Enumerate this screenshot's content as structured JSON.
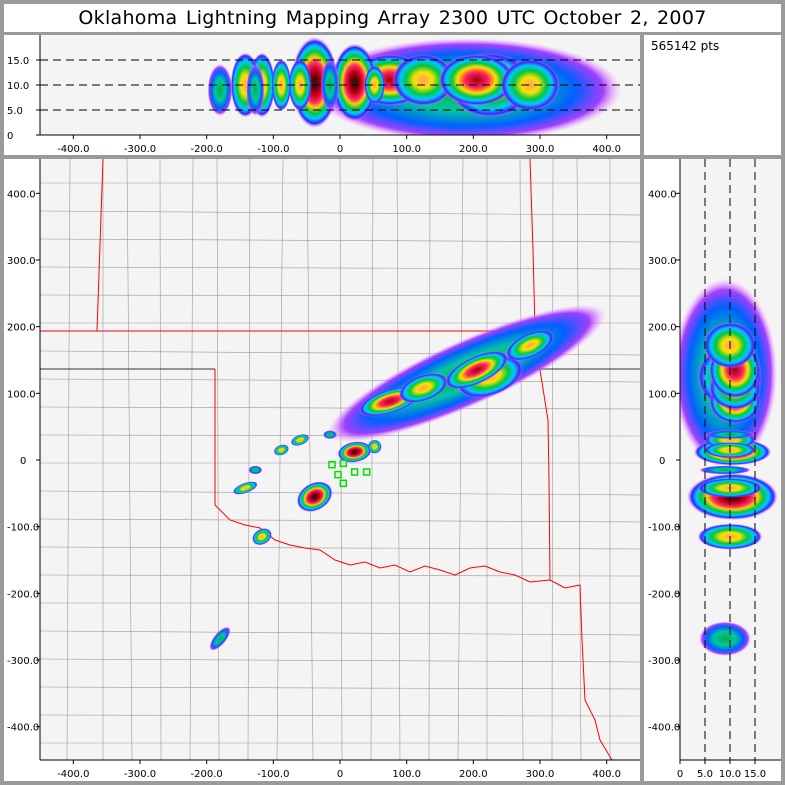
{
  "title": "Oklahoma Lightning Mapping Array   2300 UTC  October 2, 2007",
  "stats": {
    "points_label": "565142 pts"
  },
  "chart_data": {
    "type": "heatmap",
    "title": "Oklahoma Lightning Mapping Array   2300 UTC  October 2, 2007",
    "panels": {
      "altitude_vs_x": {
        "xlim": [
          -450,
          450
        ],
        "ylim": [
          0,
          20
        ],
        "xticks": [
          "-400.0",
          "-300.0",
          "-200.0",
          "-100.0",
          "0",
          "100.0",
          "200.0",
          "300.0",
          "400.0"
        ],
        "yticks": [
          "0",
          "5.0",
          "10.0",
          "15.0"
        ],
        "dashed_levels": [
          5,
          10,
          15
        ]
      },
      "plan_view": {
        "xlim": [
          -450,
          450
        ],
        "ylim": [
          -450,
          450
        ],
        "xticks": [
          "-400.0",
          "-300.0",
          "-200.0",
          "-100.0",
          "0",
          "100.0",
          "200.0",
          "300.0",
          "400.0"
        ],
        "yticks": [
          "400.0",
          "300.0",
          "200.0",
          "100.0",
          "0",
          "-100.0",
          "-200.0",
          "-300.0",
          "-400.0"
        ]
      },
      "y_vs_altitude": {
        "xlim": [
          0,
          20
        ],
        "ylim": [
          -450,
          450
        ],
        "xticks": [
          "0",
          "5.0",
          "10.0",
          "15.0"
        ],
        "dashed_levels": [
          5,
          10,
          15
        ]
      }
    },
    "colors": {
      "background": "#f4f4f4",
      "state_border": "#ff0000",
      "county_border": "#808080",
      "station": "#00e000"
    },
    "storm_cells": [
      {
        "x": 190,
        "y": 130,
        "alt": 9,
        "rx": 175,
        "ry": 38,
        "ralt": 8,
        "rot": -24,
        "level": "weak"
      },
      {
        "x": 225,
        "y": 125,
        "alt": 10,
        "rx": 40,
        "ry": 22,
        "ralt": 5,
        "rot": -20,
        "level": "mid"
      },
      {
        "x": 75,
        "y": 88,
        "alt": 11,
        "rx": 38,
        "ry": 14,
        "ralt": 4,
        "rot": -18,
        "level": "strong"
      },
      {
        "x": 125,
        "y": 108,
        "alt": 11,
        "rx": 30,
        "ry": 15,
        "ralt": 4,
        "rot": -20,
        "level": "mid"
      },
      {
        "x": 205,
        "y": 135,
        "alt": 11,
        "rx": 40,
        "ry": 16,
        "ralt": 4,
        "rot": -25,
        "level": "strong"
      },
      {
        "x": 285,
        "y": 172,
        "alt": 10,
        "rx": 30,
        "ry": 14,
        "ralt": 4,
        "rot": -25,
        "level": "mid"
      },
      {
        "x": 22,
        "y": 12,
        "alt": 10.5,
        "rx": 20,
        "ry": 12,
        "ralt": 6,
        "rot": -10,
        "level": "core"
      },
      {
        "x": -38,
        "y": -55,
        "alt": 10.5,
        "rx": 22,
        "ry": 16,
        "ralt": 7,
        "rot": -30,
        "level": "core"
      },
      {
        "x": 52,
        "y": 20,
        "alt": 10,
        "rx": 8,
        "ry": 8,
        "ralt": 3,
        "rot": 0,
        "level": "mid"
      },
      {
        "x": -117,
        "y": -115,
        "alt": 10,
        "rx": 12,
        "ry": 9,
        "ralt": 5,
        "rot": -30,
        "level": "mid"
      },
      {
        "x": -142,
        "y": -42,
        "alt": 10,
        "rx": 15,
        "ry": 6,
        "ralt": 5,
        "rot": -20,
        "level": "mid"
      },
      {
        "x": -60,
        "y": 30,
        "alt": 10,
        "rx": 11,
        "ry": 6,
        "ralt": 4,
        "rot": -20,
        "level": "mid"
      },
      {
        "x": -88,
        "y": 15,
        "alt": 10,
        "rx": 9,
        "ry": 6,
        "ralt": 4,
        "rot": -20,
        "level": "mid"
      },
      {
        "x": -15,
        "y": 38,
        "alt": 10,
        "rx": 8,
        "ry": 5,
        "ralt": 4,
        "rot": 0,
        "level": "weak"
      },
      {
        "x": -127,
        "y": -15,
        "alt": 9,
        "rx": 8,
        "ry": 5,
        "ralt": 4,
        "rot": 0,
        "level": "weak"
      },
      {
        "x": -180,
        "y": -268,
        "alt": 9,
        "rx": 17,
        "ry": 7,
        "ralt": 4,
        "rot": -50,
        "level": "weak"
      }
    ],
    "stations": [
      [
        -12,
        -7
      ],
      [
        5,
        -5
      ],
      [
        -3,
        -22
      ],
      [
        22,
        -18
      ],
      [
        40,
        -18
      ],
      [
        5,
        -35
      ]
    ]
  }
}
